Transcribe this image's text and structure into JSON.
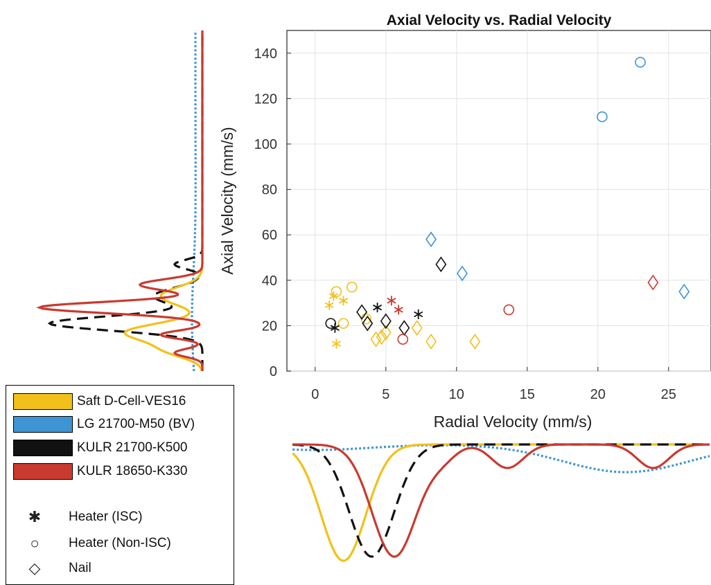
{
  "chart_data": {
    "type": "scatter",
    "title": "Axial Velocity vs. Radial Velocity",
    "xlabel": "Radial Velocity (mm/s)",
    "ylabel": "Axial Velocity (mm/s)",
    "xlim": [
      -2,
      28
    ],
    "ylim": [
      0,
      150
    ],
    "xticks": [
      0,
      5,
      10,
      15,
      20,
      25
    ],
    "yticks": [
      0,
      20,
      40,
      60,
      80,
      100,
      120,
      140
    ],
    "grid": true,
    "series": [
      {
        "name": "Saft D-Cell-VES16",
        "color": "#f2c01a",
        "points": [
          {
            "x": 1.0,
            "y": 29,
            "marker": "star"
          },
          {
            "x": 1.3,
            "y": 33,
            "marker": "star"
          },
          {
            "x": 1.5,
            "y": 12,
            "marker": "star"
          },
          {
            "x": 2.0,
            "y": 31,
            "marker": "star"
          },
          {
            "x": 1.5,
            "y": 35,
            "marker": "circle"
          },
          {
            "x": 2.0,
            "y": 21,
            "marker": "circle"
          },
          {
            "x": 2.6,
            "y": 37,
            "marker": "circle"
          },
          {
            "x": 3.6,
            "y": 23,
            "marker": "circle"
          },
          {
            "x": 4.3,
            "y": 14,
            "marker": "diamond"
          },
          {
            "x": 4.7,
            "y": 15,
            "marker": "diamond"
          },
          {
            "x": 5.0,
            "y": 17,
            "marker": "diamond"
          },
          {
            "x": 7.2,
            "y": 19,
            "marker": "diamond"
          },
          {
            "x": 8.2,
            "y": 13,
            "marker": "diamond"
          },
          {
            "x": 11.3,
            "y": 13,
            "marker": "diamond"
          }
        ]
      },
      {
        "name": "LG 21700-M50 (BV)",
        "color": "#3d95d4",
        "points": [
          {
            "x": 20.3,
            "y": 112,
            "marker": "circle"
          },
          {
            "x": 23.0,
            "y": 136,
            "marker": "circle"
          },
          {
            "x": 8.2,
            "y": 58,
            "marker": "diamond"
          },
          {
            "x": 10.4,
            "y": 43,
            "marker": "diamond"
          },
          {
            "x": 26.1,
            "y": 35,
            "marker": "diamond"
          }
        ]
      },
      {
        "name": "KULR 21700-K500",
        "color": "#111111",
        "points": [
          {
            "x": 1.4,
            "y": 19,
            "marker": "star"
          },
          {
            "x": 4.4,
            "y": 28,
            "marker": "star"
          },
          {
            "x": 7.3,
            "y": 25,
            "marker": "star"
          },
          {
            "x": 1.1,
            "y": 21,
            "marker": "circle"
          },
          {
            "x": 3.3,
            "y": 26,
            "marker": "diamond"
          },
          {
            "x": 3.7,
            "y": 21,
            "marker": "diamond"
          },
          {
            "x": 5.0,
            "y": 22,
            "marker": "diamond"
          },
          {
            "x": 6.3,
            "y": 19,
            "marker": "diamond"
          },
          {
            "x": 8.9,
            "y": 47,
            "marker": "diamond"
          }
        ]
      },
      {
        "name": "KULR 18650-K330",
        "color": "#c93a30",
        "points": [
          {
            "x": 5.4,
            "y": 31,
            "marker": "star"
          },
          {
            "x": 5.9,
            "y": 27,
            "marker": "star"
          },
          {
            "x": 6.2,
            "y": 14,
            "marker": "circle"
          },
          {
            "x": 13.7,
            "y": 27,
            "marker": "circle"
          },
          {
            "x": 23.9,
            "y": 39,
            "marker": "diamond"
          }
        ]
      }
    ],
    "marker_legend": [
      {
        "marker": "star",
        "symbol": "✱",
        "label": "Heater (ISC)"
      },
      {
        "marker": "circle",
        "symbol": "○",
        "label": "Heater (Non-ISC)"
      },
      {
        "marker": "diamond",
        "symbol": "◇",
        "label": "Nail"
      }
    ]
  }
}
